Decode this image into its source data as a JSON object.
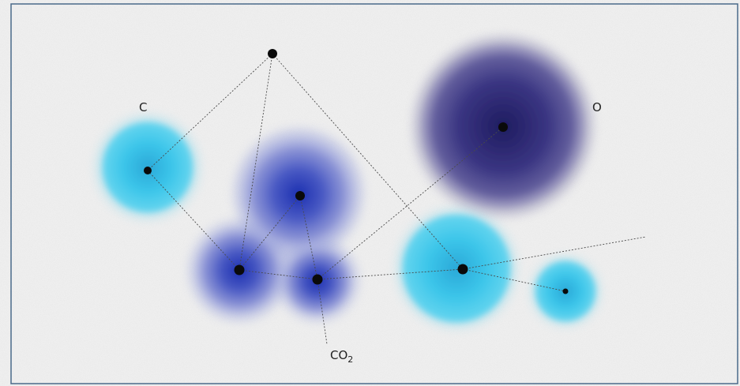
{
  "labels": {
    "c": "C",
    "o": "O",
    "co2_main": "CO",
    "co2_sub": "2"
  },
  "colors": {
    "background": "#efefef",
    "frame": "#4a6a8a",
    "cyan": "#38c2e6",
    "blue": "#2a3fb8",
    "indigo": "#2e2a78",
    "node": "#0a0a0a",
    "link": "#555555"
  }
}
